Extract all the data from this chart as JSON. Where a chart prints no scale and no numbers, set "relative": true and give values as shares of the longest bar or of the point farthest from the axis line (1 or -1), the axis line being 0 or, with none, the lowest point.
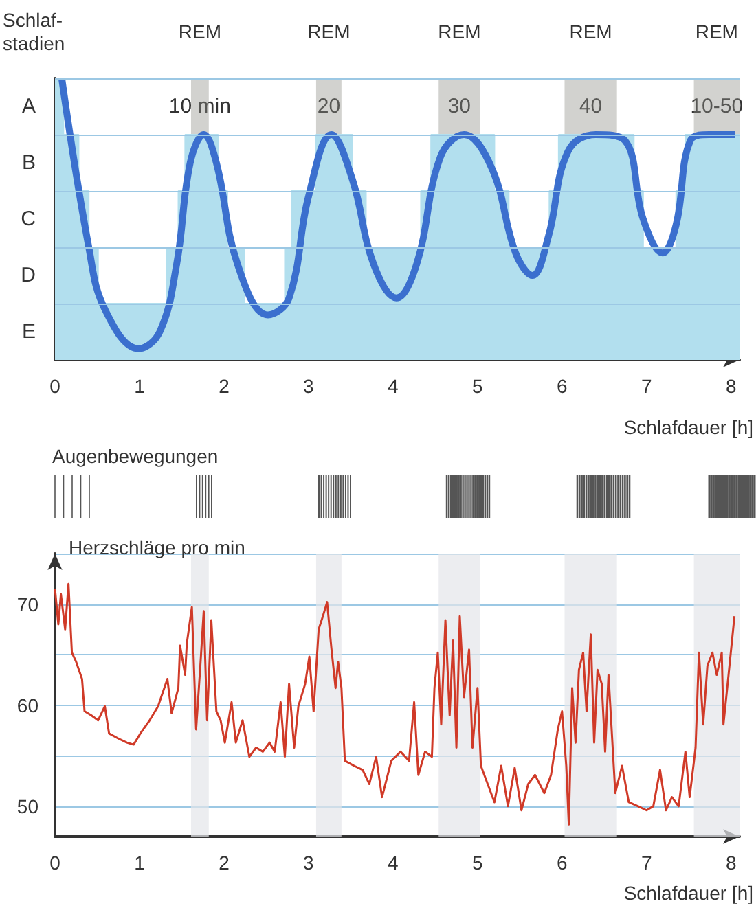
{
  "chart_data": [
    {
      "type": "line",
      "relative": true,
      "ylabel": "Schlaf-\nstadien",
      "xlabel": "Schlafdauer [h]",
      "xlim": [
        0,
        8.1
      ],
      "xticks": [
        0,
        1,
        2,
        3,
        4,
        5,
        6,
        7,
        8
      ],
      "marker": "none",
      "ref_lines": [
        {
          "axis": "y",
          "value": 0.2,
          "color": "#9cc8e4"
        },
        {
          "axis": "y",
          "value": 0.4,
          "color": "#9cc8e4"
        },
        {
          "axis": "y",
          "value": 0.6,
          "color": "#9cc8e4"
        },
        {
          "axis": "y",
          "value": 0.8,
          "color": "#9cc8e4"
        },
        {
          "axis": "y",
          "value": 1,
          "color": "#9cc8e4"
        }
      ],
      "bands": [
        {
          "axis": "x",
          "from": 1.61,
          "to": 1.82,
          "label": "REM",
          "color": "#8f8f86"
        },
        {
          "axis": "x",
          "from": 3.09,
          "to": 3.39,
          "label": "REM",
          "color": "#8f8f86"
        },
        {
          "axis": "x",
          "from": 4.54,
          "to": 5.03,
          "label": "REM",
          "color": "#8f8f86"
        },
        {
          "axis": "x",
          "from": 6.03,
          "to": 6.65,
          "label": "REM",
          "color": "#8f8f86"
        },
        {
          "axis": "x",
          "from": 7.56,
          "to": 8.1,
          "label": "REM",
          "color": "#8f8f86"
        }
      ],
      "annotations": [
        "A",
        "B",
        "C",
        "D",
        "E",
        "10 min",
        "20",
        "30",
        "40",
        "10-50"
      ],
      "series": [
        {
          "type": "area",
          "color": "#b2dfee",
          "x": [
            0,
            0.1,
            0.1,
            0.28,
            0.28,
            0.4,
            0.4,
            0.51,
            0.51,
            1.32,
            1.32,
            1.46,
            1.46,
            1.54,
            1.54,
            1.93,
            1.93,
            2.04,
            2.04,
            2.24,
            2.24,
            2.72,
            2.72,
            2.8,
            2.8,
            3.09,
            3.09,
            3.52,
            3.52,
            3.68,
            3.68,
            4.33,
            4.33,
            4.45,
            4.45,
            5.2,
            5.2,
            5.37,
            5.37,
            5.85,
            5.85,
            5.96,
            5.96,
            6.85,
            6.85,
            6.96,
            6.96,
            7.35,
            7.35,
            7.46,
            7.46,
            8.1
          ],
          "values": [
            1,
            1,
            0.8,
            0.8,
            0.6,
            0.6,
            0.4,
            0.4,
            0.2,
            0.2,
            0.4,
            0.4,
            0.6,
            0.6,
            0.8,
            0.8,
            0.6,
            0.6,
            0.4,
            0.4,
            0.2,
            0.2,
            0.4,
            0.4,
            0.6,
            0.6,
            0.8,
            0.8,
            0.6,
            0.6,
            0.4,
            0.4,
            0.6,
            0.6,
            0.8,
            0.8,
            0.6,
            0.6,
            0.4,
            0.4,
            0.6,
            0.6,
            0.8,
            0.8,
            0.6,
            0.6,
            0.4,
            0.4,
            0.6,
            0.6,
            0.8,
            0.8
          ]
        },
        {
          "type": "line",
          "color": "#3b6fce",
          "x": [
            0.08,
            0.4,
            0.59,
            0.99,
            1.24,
            1.44,
            1.6,
            1.76,
            1.91,
            2.16,
            2.52,
            2.77,
            3.0,
            3.27,
            3.52,
            3.77,
            4.04,
            4.28,
            4.56,
            4.84,
            5.17,
            5.45,
            5.65,
            5.84,
            6.07,
            6.4,
            6.74,
            6.96,
            7.19,
            7.35,
            7.52,
            7.74,
            8.05
          ],
          "values": [
            1,
            0.4,
            0.18,
            0.04,
            0.1,
            0.34,
            0.7,
            0.8,
            0.7,
            0.34,
            0.16,
            0.22,
            0.58,
            0.8,
            0.64,
            0.34,
            0.22,
            0.34,
            0.72,
            0.8,
            0.68,
            0.38,
            0.3,
            0.44,
            0.74,
            0.8,
            0.78,
            0.5,
            0.38,
            0.48,
            0.78,
            0.8,
            0.8
          ]
        }
      ]
    },
    {
      "type": "other",
      "title": "Augenbewegungen"
    },
    {
      "type": "line",
      "ylabel": "Herzschläge pro min",
      "xlabel": "Schlafdauer [h]",
      "xlim": [
        0,
        8.1
      ],
      "xticks": [
        0,
        1,
        2,
        3,
        4,
        5,
        6,
        7,
        8
      ],
      "ylim": [
        47,
        75
      ],
      "yticks": [
        50,
        {
          "value": 55,
          "label": null
        },
        60,
        {
          "value": 65,
          "label": null
        },
        70,
        {
          "value": 75,
          "label": null
        }
      ],
      "grid": "y",
      "marker": "none",
      "bands": [
        {
          "axis": "x",
          "from": 1.61,
          "to": 1.82,
          "color": "#e4e6ea"
        },
        {
          "axis": "x",
          "from": 3.09,
          "to": 3.39,
          "color": "#e4e6ea"
        },
        {
          "axis": "x",
          "from": 4.54,
          "to": 5.03,
          "color": "#e4e6ea"
        },
        {
          "axis": "x",
          "from": 6.03,
          "to": 6.65,
          "color": "#e4e6ea"
        },
        {
          "axis": "x",
          "from": 7.56,
          "to": 8.1,
          "color": "#e4e6ea"
        }
      ],
      "series": [
        {
          "color": "#d03a28",
          "x": [
            0,
            0.04,
            0.07,
            0.12,
            0.16,
            0.2,
            0.25,
            0.32,
            0.35,
            0.43,
            0.51,
            0.59,
            0.64,
            0.75,
            0.85,
            0.93,
            1.01,
            1.12,
            1.22,
            1.33,
            1.38,
            1.46,
            1.48,
            1.54,
            1.56,
            1.62,
            1.67,
            1.72,
            1.76,
            1.8,
            1.85,
            1.91,
            1.96,
            2.01,
            2.09,
            2.14,
            2.22,
            2.3,
            2.38,
            2.46,
            2.54,
            2.6,
            2.67,
            2.72,
            2.77,
            2.83,
            2.88,
            2.96,
            3.01,
            3.06,
            3.12,
            3.17,
            3.22,
            3.27,
            3.32,
            3.35,
            3.39,
            3.43,
            3.54,
            3.64,
            3.72,
            3.8,
            3.87,
            3.98,
            4.09,
            4.19,
            4.25,
            4.3,
            4.38,
            4.46,
            4.49,
            4.53,
            4.57,
            4.62,
            4.67,
            4.71,
            4.75,
            4.79,
            4.84,
            4.9,
            4.94,
            5.0,
            5.04,
            5.12,
            5.2,
            5.28,
            5.36,
            5.44,
            5.52,
            5.6,
            5.68,
            5.79,
            5.87,
            5.95,
            6.0,
            6.05,
            6.08,
            6.12,
            6.16,
            6.2,
            6.25,
            6.29,
            6.34,
            6.38,
            6.42,
            6.47,
            6.51,
            6.55,
            6.63,
            6.71,
            6.79,
            6.9,
            7.0,
            7.08,
            7.16,
            7.23,
            7.3,
            7.38,
            7.46,
            7.51,
            7.58,
            7.62,
            7.67,
            7.72,
            7.78,
            7.83,
            7.89,
            7.91,
            7.97,
            8.04
          ],
          "values": [
            71.5,
            68,
            71,
            67.5,
            72,
            65.2,
            64.3,
            62.6,
            59.4,
            59,
            58.5,
            59.9,
            57.2,
            56.7,
            56.3,
            56.1,
            57.2,
            58.5,
            59.9,
            62.6,
            59.2,
            61.7,
            65.9,
            63,
            66.1,
            69.7,
            57.6,
            63.9,
            69.3,
            58.5,
            68.4,
            59.4,
            58.5,
            56.3,
            60.3,
            56.3,
            58.5,
            54.9,
            55.8,
            55.4,
            56.3,
            55.4,
            60.3,
            54.9,
            62.1,
            55.8,
            59.9,
            62.1,
            64.8,
            59.4,
            67.5,
            68.8,
            70.2,
            65.7,
            61.7,
            64.3,
            61.7,
            54.5,
            54,
            53.6,
            52.2,
            54.9,
            50.9,
            54.5,
            55.4,
            54.5,
            60.3,
            53.1,
            55.4,
            54.9,
            61.7,
            65.2,
            58.1,
            68.4,
            59,
            66.4,
            55.8,
            68.8,
            60.8,
            65.5,
            55.8,
            61.7,
            54,
            52.2,
            50.4,
            54,
            50,
            53.8,
            49.6,
            52.2,
            53.1,
            51.3,
            53.1,
            57.6,
            59.4,
            54,
            48.2,
            61.7,
            56.3,
            63.5,
            65.2,
            59.4,
            67,
            56.3,
            63.5,
            62.1,
            55.4,
            63,
            51.3,
            54,
            50.4,
            50,
            49.6,
            50,
            53.6,
            49.6,
            50.9,
            50,
            55.4,
            50.9,
            55.8,
            65.2,
            58.1,
            63.9,
            65.2,
            63,
            65.2,
            58.1,
            63,
            68.8
          ]
        }
      ]
    }
  ]
}
